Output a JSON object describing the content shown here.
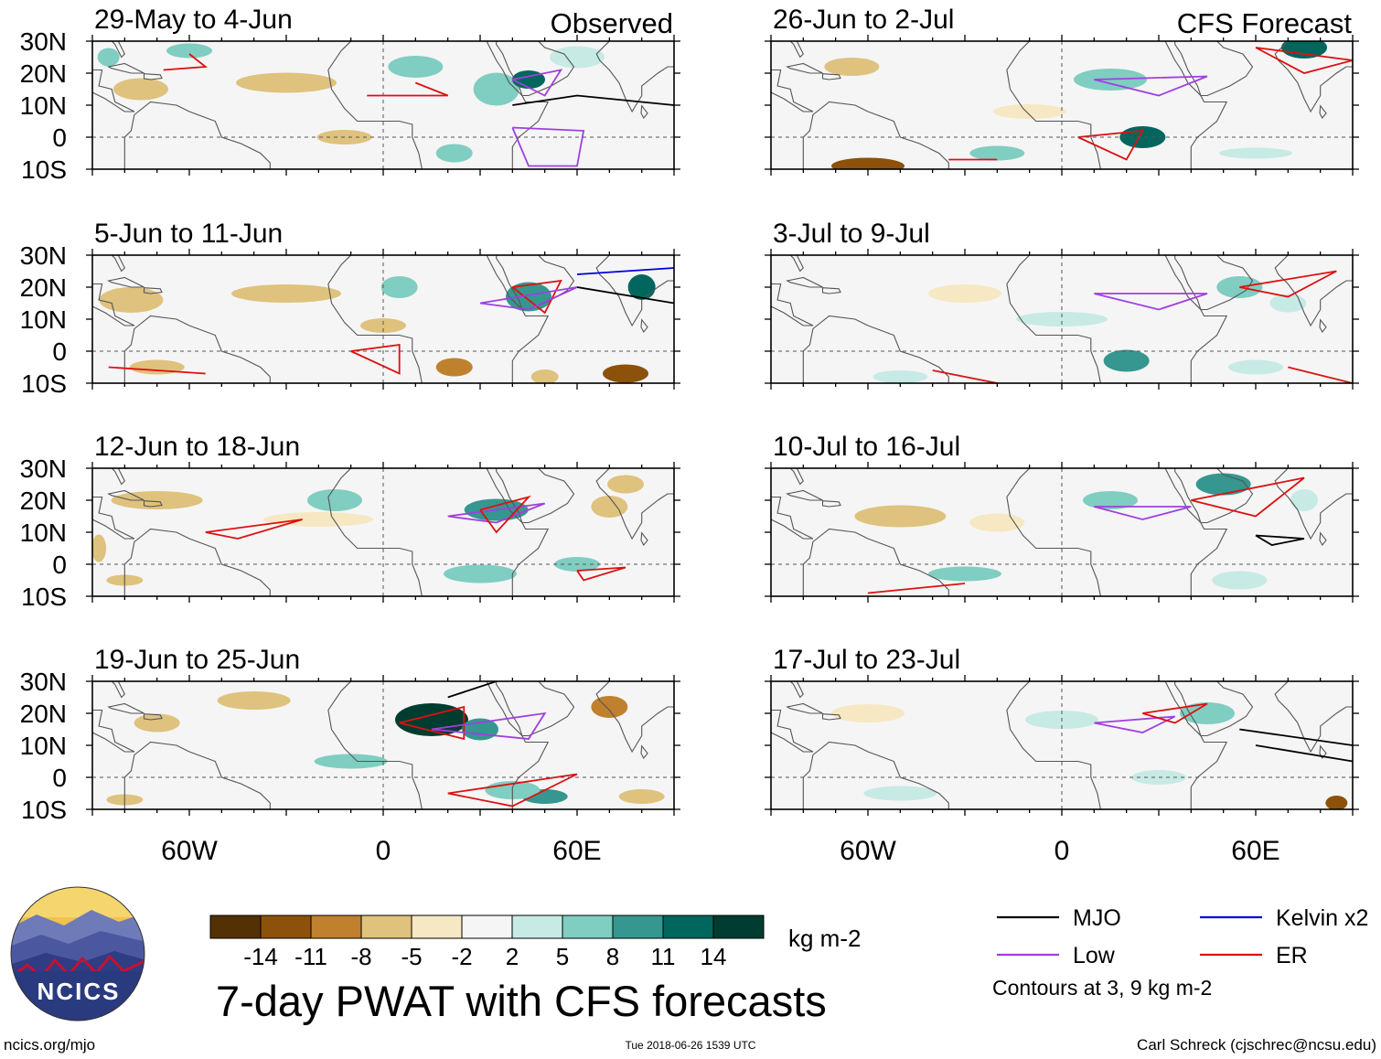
{
  "figure": {
    "title": "7-day PWAT with CFS forecasts",
    "left_column_label": "Observed",
    "right_column_label": "CFS Forecast",
    "footer_left": "ncics.org/mjo",
    "footer_center": "Tue 2018-06-26 1539 UTC",
    "footer_right": "Carl Schreck (cjschrec@ncsu.edu)",
    "logo_text": "NCICS"
  },
  "chart_data": {
    "type": "heatmap",
    "variable": "7-day precipitable water anomaly with wave-filtered contours",
    "lat_range": [
      -10,
      30
    ],
    "lon_range": [
      -90,
      90
    ],
    "lat_ticks": [
      "30N",
      "20N",
      "10N",
      "0",
      "10S"
    ],
    "lon_ticks": [
      "60W",
      "0",
      "60E"
    ],
    "panels": [
      {
        "period": "29-May to 4-Jun",
        "source": "Observed"
      },
      {
        "period": "5-Jun to 11-Jun",
        "source": "Observed"
      },
      {
        "period": "12-Jun to 18-Jun",
        "source": "Observed"
      },
      {
        "period": "19-Jun to 25-Jun",
        "source": "Observed"
      },
      {
        "period": "26-Jun to 2-Jul",
        "source": "CFS Forecast"
      },
      {
        "period": "3-Jul to 9-Jul",
        "source": "CFS Forecast"
      },
      {
        "period": "10-Jul to 16-Jul",
        "source": "CFS Forecast"
      },
      {
        "period": "17-Jul to 23-Jul",
        "source": "CFS Forecast"
      }
    ],
    "colorbar": {
      "unit": "kg m-2",
      "tick_labels": [
        "-14",
        "-11",
        "-8",
        "-5",
        "-2",
        "2",
        "5",
        "8",
        "11",
        "14"
      ],
      "colors": [
        "#543005",
        "#8c510a",
        "#bf812d",
        "#dfc27d",
        "#f6e8c3",
        "#f5f5f5",
        "#c7eae5",
        "#80cdc1",
        "#35978f",
        "#01665e",
        "#003c30"
      ]
    },
    "legend": [
      {
        "label": "MJO",
        "color": "#000000"
      },
      {
        "label": "Kelvin x2",
        "color": "#0000dd"
      },
      {
        "label": "Low",
        "color": "#a040e0"
      },
      {
        "label": "ER",
        "color": "#dd1111"
      }
    ],
    "contour_note": "Contours at 3, 9 kg m-2"
  }
}
